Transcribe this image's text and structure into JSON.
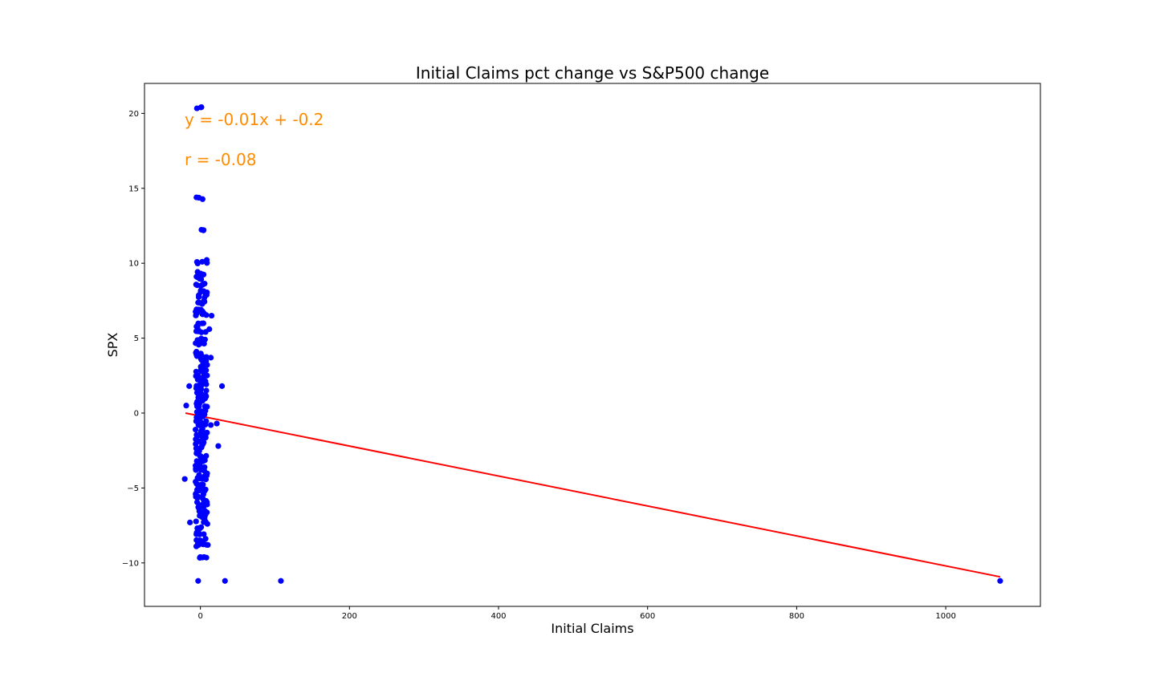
{
  "chart_data": {
    "type": "scatter",
    "title": "Initial Claims pct change vs S&P500 change",
    "xlabel": "Initial Claims",
    "ylabel": "SPX",
    "xlim": [
      -75,
      1127
    ],
    "ylim": [
      -12.9,
      22.0
    ],
    "xticks": [
      0,
      200,
      400,
      600,
      800,
      1000
    ],
    "xtick_labels": [
      "0",
      "200",
      "400",
      "600",
      "800",
      "1000"
    ],
    "yticks": [
      -10,
      -5,
      0,
      5,
      10,
      15,
      20
    ],
    "ytick_labels": [
      "−10",
      "−5",
      "0",
      "5",
      "10",
      "15",
      "20"
    ],
    "grid": false,
    "colors": {
      "points": "#0000ff",
      "fit_line": "#ff0000",
      "annotation": "#ff8c00"
    },
    "annotations": [
      "y = -0.01x + -0.2",
      "r = -0.08"
    ],
    "fit_line": {
      "slope": -0.01,
      "intercept": -0.2,
      "x_range": [
        -20,
        1073
      ]
    },
    "outliers": [
      {
        "x": 1073,
        "y": -11.2
      },
      {
        "x": 108,
        "y": -11.2
      },
      {
        "x": 33,
        "y": -11.2
      },
      {
        "x": -3,
        "y": -11.2
      },
      {
        "x": 29,
        "y": 1.8
      },
      {
        "x": 24,
        "y": -2.2
      },
      {
        "x": 22,
        "y": -0.7
      },
      {
        "x": -21,
        "y": -4.4
      },
      {
        "x": -19,
        "y": 0.5
      },
      {
        "x": -15,
        "y": 1.8
      },
      {
        "x": -14,
        "y": -7.3
      },
      {
        "x": 15,
        "y": 6.5
      },
      {
        "x": 14,
        "y": 3.7
      },
      {
        "x": 14,
        "y": -0.8
      },
      {
        "x": 12,
        "y": 5.6
      },
      {
        "x": 10,
        "y": -8.8
      }
    ],
    "clusters": [
      {
        "x_center": 1.5,
        "x_spread": 8,
        "ys": [
          20.4,
          14.3,
          12.3,
          10.1,
          9.3,
          9.0,
          8.6,
          8.1,
          7.8,
          7.4,
          6.8,
          6.6,
          5.9,
          5.5,
          5.0,
          4.6,
          4.0,
          3.7,
          3.5,
          3.2,
          2.8,
          2.5,
          2.2,
          1.9,
          1.6,
          1.3,
          1.0,
          0.7,
          0.4,
          0.1,
          -0.2,
          -0.5,
          -0.8,
          -1.1,
          -1.4,
          -1.7,
          -2.0,
          -2.3,
          -2.6,
          -2.9,
          -3.2,
          -3.5,
          -3.8,
          -4.1,
          -4.4,
          -4.7,
          -5.0,
          -5.3,
          -5.6,
          -5.9,
          -6.2,
          -6.5,
          -6.9,
          -7.3,
          -7.6,
          -8.0,
          -8.5,
          -8.8,
          -9.7
        ]
      }
    ]
  }
}
